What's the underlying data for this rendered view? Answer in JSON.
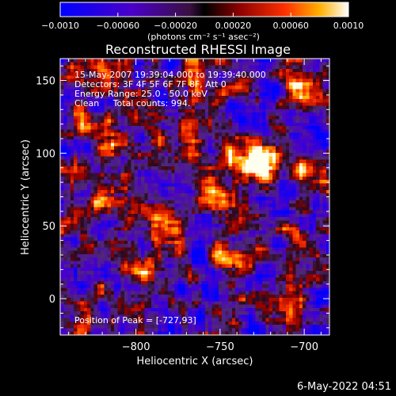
{
  "chart_data": {
    "type": "heatmap",
    "title": "Reconstructed RHESSI Image",
    "xlabel": "Heliocentric X (arcsec)",
    "ylabel": "Heliocentric Y (arcsec)",
    "xlim": [
      -845,
      -685
    ],
    "ylim": [
      -25,
      165
    ],
    "x_ticks": [
      -800,
      -750,
      -700
    ],
    "x_tick_labels": [
      "−800",
      "−750",
      "−700"
    ],
    "y_ticks": [
      0,
      50,
      100,
      150
    ],
    "y_tick_labels": [
      "0",
      "50",
      "100",
      "150"
    ],
    "colorbar": {
      "range": [
        -0.001,
        0.001
      ],
      "ticks": [
        -0.001,
        -0.0006,
        -0.0002,
        0.0002,
        0.0006,
        0.001
      ],
      "tick_labels": [
        "−0.0010",
        "−0.00060",
        "−0.00020",
        "0.00020",
        "0.00060",
        "0.0010"
      ],
      "unit_label": "(photons cm⁻² s⁻¹ asec⁻²)"
    },
    "annotations": [
      "15-May-2007 19:39:04.000 to 19:39:40.000",
      "Detectors: 3F 4F 5F 6F 7F 8F, Att 0",
      "Energy Range: 25.0 - 50.0 keV",
      "Clean     Total counts: 994."
    ],
    "peak_label": "Position of Peak = [-727,93]",
    "peak_position": [
      -727,
      93
    ],
    "bright_sources": [
      {
        "x": -727,
        "y": 93,
        "intensity": 1.0
      },
      {
        "x": -697,
        "y": 143,
        "intensity": 0.95
      },
      {
        "x": -785,
        "y": 52,
        "intensity": 0.9
      },
      {
        "x": -815,
        "y": 110,
        "intensity": 0.6
      },
      {
        "x": -755,
        "y": 75,
        "intensity": 0.6
      },
      {
        "x": -820,
        "y": 150,
        "intensity": 0.55
      },
      {
        "x": -800,
        "y": 20,
        "intensity": 0.55
      },
      {
        "x": -705,
        "y": 40,
        "intensity": 0.55
      },
      {
        "x": -770,
        "y": 120,
        "intensity": 0.5
      },
      {
        "x": -710,
        "y": -5,
        "intensity": 0.5
      },
      {
        "x": -830,
        "y": 60,
        "intensity": 0.45
      },
      {
        "x": -745,
        "y": 30,
        "intensity": 0.45
      },
      {
        "x": -760,
        "y": 155,
        "intensity": 0.4
      },
      {
        "x": -695,
        "y": 85,
        "intensity": 0.4
      },
      {
        "x": -825,
        "y": -10,
        "intensity": 0.35
      }
    ]
  },
  "footer": {
    "date": "6-May-2022 04:51"
  }
}
